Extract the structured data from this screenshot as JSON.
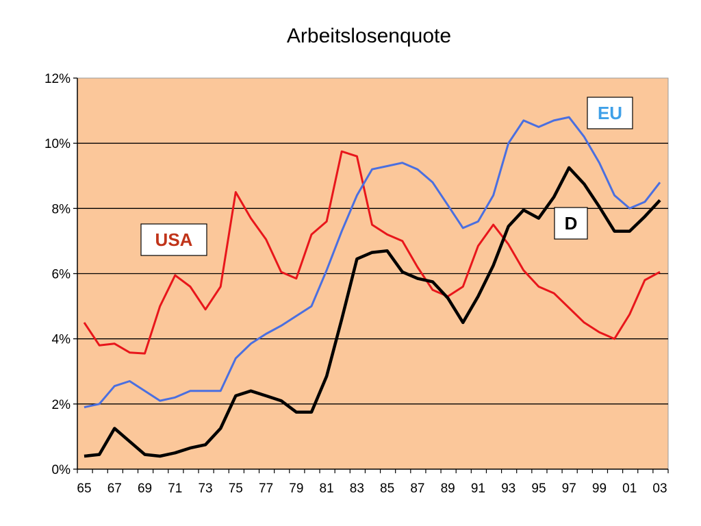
{
  "chart_data": {
    "type": "line",
    "title": "Arbeitslosenquote",
    "xlabel": "",
    "ylabel": "",
    "x": [
      1965,
      1966,
      1967,
      1968,
      1969,
      1970,
      1971,
      1972,
      1973,
      1974,
      1975,
      1976,
      1977,
      1978,
      1979,
      1980,
      1981,
      1982,
      1983,
      1984,
      1985,
      1986,
      1987,
      1988,
      1989,
      1990,
      1991,
      1992,
      1993,
      1994,
      1995,
      1996,
      1997,
      1998,
      1999,
      2000,
      2001,
      2002,
      2003
    ],
    "x_tick_labels": [
      "65",
      "67",
      "69",
      "71",
      "73",
      "75",
      "77",
      "79",
      "81",
      "83",
      "85",
      "87",
      "89",
      "91",
      "93",
      "95",
      "97",
      "99",
      "01",
      "03"
    ],
    "y_tick_labels": [
      "0%",
      "2%",
      "4%",
      "6%",
      "8%",
      "10%",
      "12%"
    ],
    "ylim": [
      0,
      12
    ],
    "grid": true,
    "plot_background": "#FBC79A",
    "series": [
      {
        "name": "USA",
        "color": "#E8161B",
        "label_color": "#C0341A",
        "values": [
          4.5,
          3.8,
          3.85,
          3.58,
          3.55,
          5.0,
          5.95,
          5.6,
          4.9,
          5.6,
          8.5,
          7.7,
          7.05,
          6.05,
          5.85,
          7.2,
          7.6,
          9.75,
          9.6,
          7.5,
          7.2,
          7.0,
          6.2,
          5.5,
          5.3,
          5.6,
          6.85,
          7.5,
          6.9,
          6.1,
          5.6,
          5.4,
          4.95,
          4.5,
          4.2,
          4.0,
          4.75,
          5.8,
          6.05
        ]
      },
      {
        "name": "EU",
        "color": "#4A6FE0",
        "label_color": "#3FA0E8",
        "values": [
          1.9,
          2.0,
          2.55,
          2.7,
          2.4,
          2.1,
          2.2,
          2.4,
          2.4,
          2.4,
          3.4,
          3.85,
          4.15,
          4.4,
          4.7,
          5.0,
          6.1,
          7.3,
          8.4,
          9.2,
          9.3,
          9.4,
          9.2,
          8.8,
          8.1,
          7.4,
          7.6,
          8.4,
          10.0,
          10.7,
          10.5,
          10.7,
          10.8,
          10.2,
          9.4,
          8.4,
          8.0,
          8.2,
          8.8
        ]
      },
      {
        "name": "D",
        "color": "#000000",
        "label_color": "#000000",
        "values": [
          0.4,
          0.45,
          1.25,
          0.85,
          0.45,
          0.4,
          0.5,
          0.65,
          0.75,
          1.25,
          2.25,
          2.4,
          2.25,
          2.1,
          1.75,
          1.75,
          2.85,
          4.6,
          6.45,
          6.65,
          6.7,
          6.05,
          5.85,
          5.75,
          5.25,
          4.5,
          5.3,
          6.25,
          7.45,
          7.95,
          7.7,
          8.35,
          9.25,
          8.75,
          8.05,
          7.3,
          7.3,
          7.75,
          8.25
        ]
      }
    ],
    "legend_placement": "inline labels near lines"
  }
}
